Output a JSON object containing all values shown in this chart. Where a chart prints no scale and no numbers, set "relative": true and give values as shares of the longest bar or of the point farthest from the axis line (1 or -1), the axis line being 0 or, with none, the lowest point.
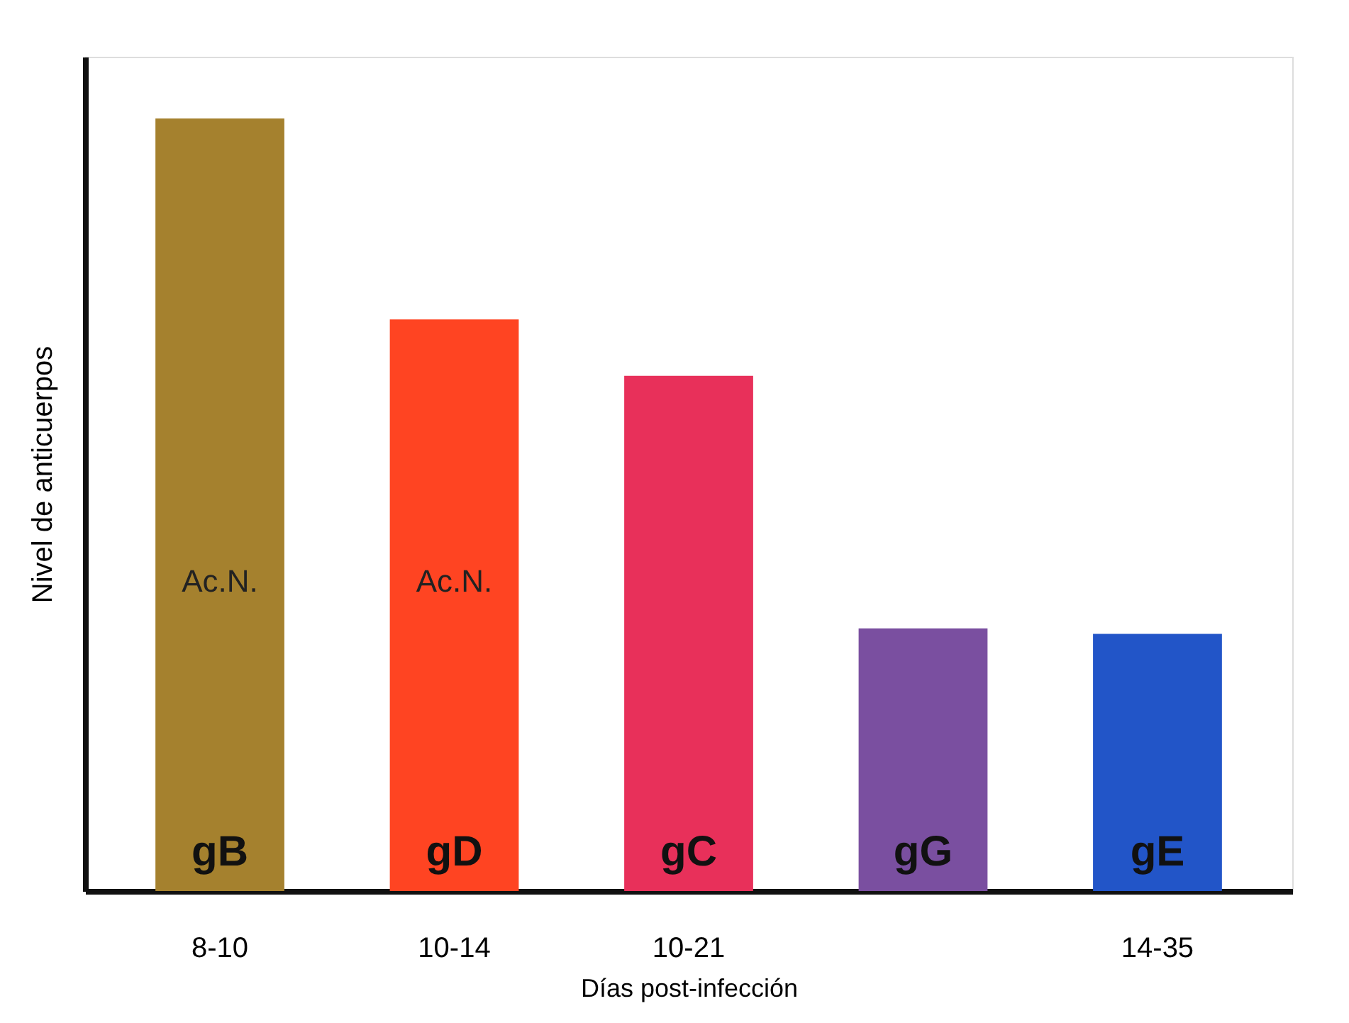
{
  "chart_data": {
    "type": "bar",
    "relative": true,
    "xlabel": "Días post-infección",
    "ylabel": "Nivel de anticuerpos",
    "categories": [
      "8-10",
      "10-14",
      "10-21",
      null,
      "14-35"
    ],
    "values": [
      1,
      0.74,
      0.667,
      0.34,
      0.333
    ],
    "colors": [
      "#a5812e",
      "#ff4422",
      "#e8305a",
      "#7a4fa0",
      "#2255c8"
    ],
    "annotations": [
      "gB",
      "gD",
      "gC",
      "gG",
      "gE",
      "Ac.N.",
      "Ac.N."
    ],
    "grid": false
  }
}
